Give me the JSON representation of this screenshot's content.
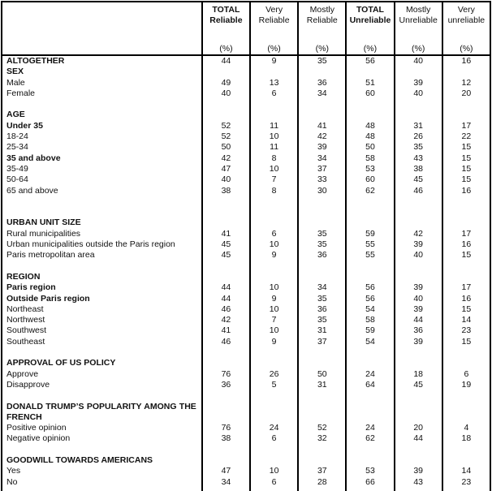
{
  "table": {
    "header": {
      "columns": [
        {
          "label": "TOTAL Reliable",
          "bold": true,
          "unit": "(%)"
        },
        {
          "label": "Very Reliable",
          "bold": false,
          "unit": "(%)"
        },
        {
          "label": "Mostly Reliable",
          "bold": false,
          "unit": "(%)"
        },
        {
          "label": "TOTAL Unreliable",
          "bold": true,
          "unit": "(%)"
        },
        {
          "label": "Mostly Unreliable",
          "bold": false,
          "unit": "(%)"
        },
        {
          "label": "Very unreliable",
          "bold": false,
          "unit": "(%)"
        }
      ]
    },
    "rows": [
      {
        "label": "ALTOGETHER",
        "bold": true,
        "values": [
          "44",
          "9",
          "35",
          "56",
          "40",
          "16"
        ]
      },
      {
        "label": "SEX",
        "bold": true,
        "values": []
      },
      {
        "label": "Male",
        "bold": false,
        "values": [
          "49",
          "13",
          "36",
          "51",
          "39",
          "12"
        ]
      },
      {
        "label": "Female",
        "bold": false,
        "values": [
          "40",
          "6",
          "34",
          "60",
          "40",
          "20"
        ]
      },
      {
        "spacer": true
      },
      {
        "label": "AGE",
        "bold": true,
        "values": []
      },
      {
        "label": "Under 35",
        "bold": true,
        "values": [
          "52",
          "11",
          "41",
          "48",
          "31",
          "17"
        ]
      },
      {
        "label": "18-24",
        "bold": false,
        "values": [
          "52",
          "10",
          "42",
          "48",
          "26",
          "22"
        ]
      },
      {
        "label": "25-34",
        "bold": false,
        "values": [
          "50",
          "11",
          "39",
          "50",
          "35",
          "15"
        ]
      },
      {
        "label": "35 and above",
        "bold": true,
        "values": [
          "42",
          "8",
          "34",
          "58",
          "43",
          "15"
        ]
      },
      {
        "label": "35-49",
        "bold": false,
        "values": [
          "47",
          "10",
          "37",
          "53",
          "38",
          "15"
        ]
      },
      {
        "label": "50-64",
        "bold": false,
        "values": [
          "40",
          "7",
          "33",
          "60",
          "45",
          "15"
        ]
      },
      {
        "label": "65 and above",
        "bold": false,
        "values": [
          "38",
          "8",
          "30",
          "62",
          "46",
          "16"
        ]
      },
      {
        "spacer": true
      },
      {
        "spacer": true
      },
      {
        "label": "URBAN UNIT SIZE",
        "bold": true,
        "values": []
      },
      {
        "label": "Rural municipalities",
        "bold": false,
        "values": [
          "41",
          "6",
          "35",
          "59",
          "42",
          "17"
        ]
      },
      {
        "label": "Urban municipalities outside the Paris region",
        "bold": false,
        "values": [
          "45",
          "10",
          "35",
          "55",
          "39",
          "16"
        ]
      },
      {
        "label": "Paris metropolitan area",
        "bold": false,
        "values": [
          "45",
          "9",
          "36",
          "55",
          "40",
          "15"
        ]
      },
      {
        "spacer": true
      },
      {
        "label": "REGION",
        "bold": true,
        "values": []
      },
      {
        "label": "Paris region",
        "bold": true,
        "values": [
          "44",
          "10",
          "34",
          "56",
          "39",
          "17"
        ]
      },
      {
        "label": "Outside Paris region",
        "bold": true,
        "values": [
          "44",
          "9",
          "35",
          "56",
          "40",
          "16"
        ]
      },
      {
        "label": "Northeast",
        "bold": false,
        "values": [
          "46",
          "10",
          "36",
          "54",
          "39",
          "15"
        ]
      },
      {
        "label": "Northwest",
        "bold": false,
        "values": [
          "42",
          "7",
          "35",
          "58",
          "44",
          "14"
        ]
      },
      {
        "label": "Southwest",
        "bold": false,
        "values": [
          "41",
          "10",
          "31",
          "59",
          "36",
          "23"
        ]
      },
      {
        "label": "Southeast",
        "bold": false,
        "values": [
          "46",
          "9",
          "37",
          "54",
          "39",
          "15"
        ]
      },
      {
        "spacer": true
      },
      {
        "label": "APPROVAL OF US POLICY",
        "bold": true,
        "values": []
      },
      {
        "label": "Approve",
        "bold": false,
        "values": [
          "76",
          "26",
          "50",
          "24",
          "18",
          "6"
        ]
      },
      {
        "label": "Disapprove",
        "bold": false,
        "values": [
          "36",
          "5",
          "31",
          "64",
          "45",
          "19"
        ]
      },
      {
        "spacer": true
      },
      {
        "label": "DONALD TRUMP’S POPULARITY AMONG THE FRENCH",
        "bold": true,
        "justify": true,
        "values": []
      },
      {
        "label": "Positive opinion",
        "bold": false,
        "values": [
          "76",
          "24",
          "52",
          "24",
          "20",
          "4"
        ]
      },
      {
        "label": "Negative opinion",
        "bold": false,
        "values": [
          "38",
          "6",
          "32",
          "62",
          "44",
          "18"
        ]
      },
      {
        "spacer": true
      },
      {
        "label": "GOODWILL TOWARDS AMERICANS",
        "bold": true,
        "values": []
      },
      {
        "label": "Yes",
        "bold": false,
        "values": [
          "47",
          "10",
          "37",
          "53",
          "39",
          "14"
        ]
      },
      {
        "label": "No",
        "bold": false,
        "values": [
          "34",
          "6",
          "28",
          "66",
          "43",
          "23"
        ]
      },
      {
        "spacer": true
      }
    ]
  }
}
